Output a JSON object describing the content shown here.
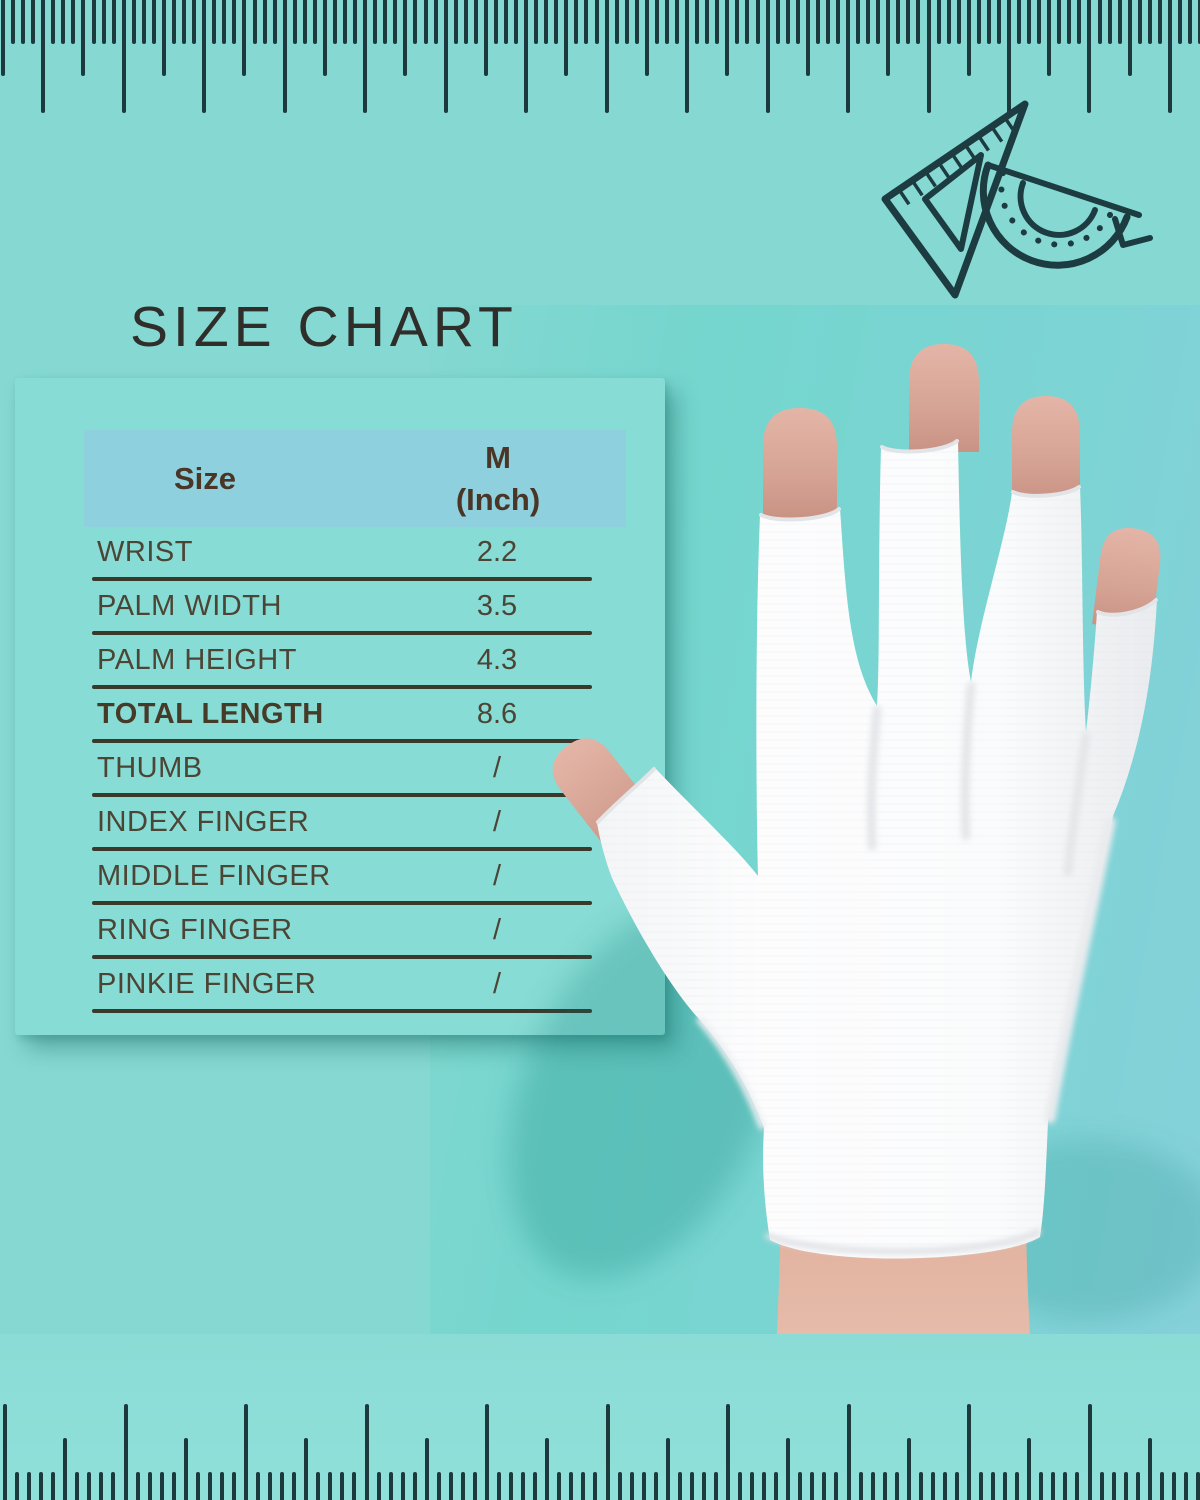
{
  "title": "SIZE CHART",
  "table": {
    "size_col_header": "Size",
    "value_col_header_line1": "M",
    "value_col_header_line2": "(Inch)",
    "rows": [
      {
        "label": "WRIST",
        "value": "2.2"
      },
      {
        "label": "PALM WIDTH",
        "value": "3.5"
      },
      {
        "label": "PALM HEIGHT",
        "value": "4.3"
      },
      {
        "label": "TOTAL LENGTH",
        "value": "8.6"
      },
      {
        "label": "THUMB",
        "value": "/"
      },
      {
        "label": "INDEX FINGER",
        "value": "/"
      },
      {
        "label": "MIDDLE FINGER",
        "value": "/"
      },
      {
        "label": "RING FINGER",
        "value": "/"
      },
      {
        "label": "PINKIE FINGER",
        "value": "/"
      }
    ]
  },
  "icons": {
    "top_ruler": "ruler-ticks",
    "bottom_ruler": "ruler-ticks",
    "corner_drawing": "set-square-and-protractor",
    "photo": "hand-wearing-white-fingerless-glove"
  },
  "colors": {
    "page_background": "#85d9d2",
    "photo_background": "#7cd4d4",
    "ruler_tick": "#1c3a3d",
    "title_text": "#2f2e2a",
    "card_background": "#87dcd5",
    "header_band": "#8ed0dd",
    "header_text": "#4a3527",
    "row_text": "#4c4435",
    "divider": "#3b392b",
    "glove": "#fbfbfc",
    "skin": "#d9a898"
  },
  "chart_data": {
    "type": "table",
    "title": "SIZE CHART",
    "columns": [
      "Size",
      "M (Inch)"
    ],
    "rows": [
      [
        "WRIST",
        "2.2"
      ],
      [
        "PALM WIDTH",
        "3.5"
      ],
      [
        "PALM HEIGHT",
        "4.3"
      ],
      [
        "TOTAL LENGTH",
        "8.6"
      ],
      [
        "THUMB",
        "/"
      ],
      [
        "INDEX FINGER",
        "/"
      ],
      [
        "MIDDLE FINGER",
        "/"
      ],
      [
        "RING FINGER",
        "/"
      ],
      [
        "PINKIE FINGER",
        "/"
      ]
    ]
  }
}
